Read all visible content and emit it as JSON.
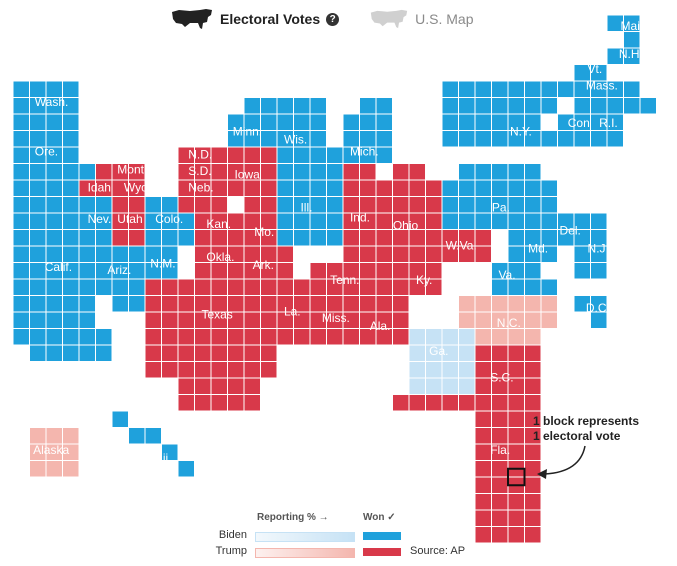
{
  "tabs": [
    {
      "label": "Electoral Votes",
      "active": true,
      "icon": "us-silhouette-icon"
    },
    {
      "label": "U.S. Map",
      "active": false,
      "icon": "us-silhouette-icon"
    }
  ],
  "help_icon": "?",
  "colors": {
    "biden_won": "#1fa1dc",
    "trump_won": "#d8394a",
    "biden_reporting": "#c6e2f5",
    "trump_reporting": "#f4b6ae",
    "grid_line": "#ffffff"
  },
  "states": [
    {
      "name": "Maine",
      "party": "D",
      "ev": 4
    },
    {
      "name": "N.H.",
      "party": "D",
      "ev": 4
    },
    {
      "name": "Vt.",
      "party": "D",
      "ev": 3
    },
    {
      "name": "Mass.",
      "party": "D",
      "ev": 11
    },
    {
      "name": "Conn.",
      "party": "D",
      "ev": 7
    },
    {
      "name": "R.I.",
      "party": "D",
      "ev": 4
    },
    {
      "name": "N.Y.",
      "party": "D",
      "ev": 29
    },
    {
      "name": "Wash.",
      "party": "D",
      "ev": 12
    },
    {
      "name": "Ore.",
      "party": "D",
      "ev": 7
    },
    {
      "name": "Calif.",
      "party": "D",
      "ev": 55
    },
    {
      "name": "Mont.",
      "party": "R",
      "ev": 3
    },
    {
      "name": "Idaho",
      "party": "R",
      "ev": 4
    },
    {
      "name": "Wyo.",
      "party": "R",
      "ev": 3
    },
    {
      "name": "Nev.",
      "party": "D",
      "ev": 6
    },
    {
      "name": "Utah",
      "party": "R",
      "ev": 6
    },
    {
      "name": "Colo.",
      "party": "D",
      "ev": 9
    },
    {
      "name": "Ariz.",
      "party": "D",
      "ev": 11
    },
    {
      "name": "N.M.",
      "party": "D",
      "ev": 5
    },
    {
      "name": "N.D.",
      "party": "R",
      "ev": 3
    },
    {
      "name": "S.D.",
      "party": "R",
      "ev": 3
    },
    {
      "name": "Neb.",
      "party": "R",
      "ev": 5
    },
    {
      "name": "Kan.",
      "party": "R",
      "ev": 6
    },
    {
      "name": "Okla.",
      "party": "R",
      "ev": 7
    },
    {
      "name": "Texas",
      "party": "R",
      "ev": 38
    },
    {
      "name": "Minn.",
      "party": "D",
      "ev": 10
    },
    {
      "name": "Iowa",
      "party": "R",
      "ev": 6
    },
    {
      "name": "Mo.",
      "party": "R",
      "ev": 10
    },
    {
      "name": "Ark.",
      "party": "R",
      "ev": 6
    },
    {
      "name": "La.",
      "party": "R",
      "ev": 8
    },
    {
      "name": "Wis.",
      "party": "D",
      "ev": 10
    },
    {
      "name": "Ill.",
      "party": "D",
      "ev": 20
    },
    {
      "name": "Mich.",
      "party": "D",
      "ev": 16
    },
    {
      "name": "Ind.",
      "party": "R",
      "ev": 11
    },
    {
      "name": "Ohio",
      "party": "R",
      "ev": 18
    },
    {
      "name": "Tenn.",
      "party": "R",
      "ev": 11
    },
    {
      "name": "Ky.",
      "party": "R",
      "ev": 8
    },
    {
      "name": "Miss.",
      "party": "R",
      "ev": 6
    },
    {
      "name": "Ala.",
      "party": "R",
      "ev": 9
    },
    {
      "name": "Pa.",
      "party": "D",
      "ev": 20
    },
    {
      "name": "N.J.",
      "party": "D",
      "ev": 14
    },
    {
      "name": "Del.",
      "party": "D",
      "ev": 3
    },
    {
      "name": "Md.",
      "party": "D",
      "ev": 10
    },
    {
      "name": "D.C.",
      "party": "D",
      "ev": 3
    },
    {
      "name": "W.Va.",
      "party": "R",
      "ev": 5
    },
    {
      "name": "Va.",
      "party": "D",
      "ev": 13
    },
    {
      "name": "N.C.",
      "party": "R-lead",
      "ev": 15
    },
    {
      "name": "Ga.",
      "party": "D-lead",
      "ev": 16
    },
    {
      "name": "S.C.",
      "party": "R",
      "ev": 9
    },
    {
      "name": "Fla.",
      "party": "R",
      "ev": 29
    },
    {
      "name": "Alaska",
      "party": "R-lead",
      "ev": 3
    },
    {
      "name": "Hawaii",
      "party": "D",
      "ev": 4
    }
  ],
  "annotation": {
    "line1": "1 block represents",
    "line2": "1 electoral vote"
  },
  "legend": {
    "reporting_label": "Reporting % →",
    "won_label": "Won ✓",
    "rows": [
      "Biden",
      "Trump"
    ],
    "source": "Source: AP"
  }
}
